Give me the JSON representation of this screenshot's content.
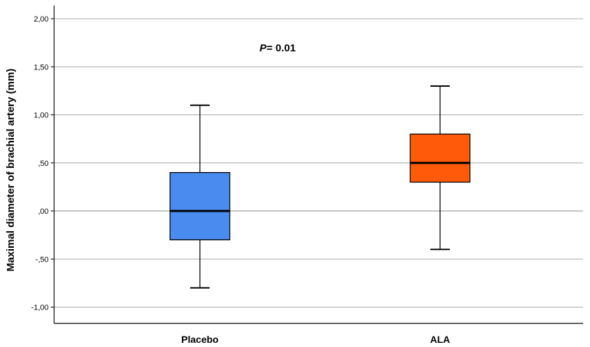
{
  "chart_data": {
    "type": "box",
    "ylabel": "Maximal diameter of brachial artery (mm)",
    "ylim": [
      -1.15,
      2.1
    ],
    "yticks": [
      2.0,
      1.5,
      1.0,
      0.5,
      0.0,
      -0.5,
      -1.0
    ],
    "ytick_labels": [
      "2,00",
      "1,50",
      "1,00",
      ",50",
      ",00",
      "-,50",
      "-1,00"
    ],
    "grid": true,
    "categories": [
      "Placebo",
      "ALA"
    ],
    "boxes": [
      {
        "category": "Placebo",
        "min": -0.8,
        "q1": -0.3,
        "median": 0.0,
        "q3": 0.4,
        "max": 1.1,
        "color": "#4A8BF0"
      },
      {
        "category": "ALA",
        "min": -0.4,
        "q1": 0.3,
        "median": 0.5,
        "q3": 0.8,
        "max": 1.3,
        "color": "#FF5A0A"
      }
    ],
    "annotation": {
      "italic_part": "P",
      "rest": "= 0.01"
    }
  }
}
